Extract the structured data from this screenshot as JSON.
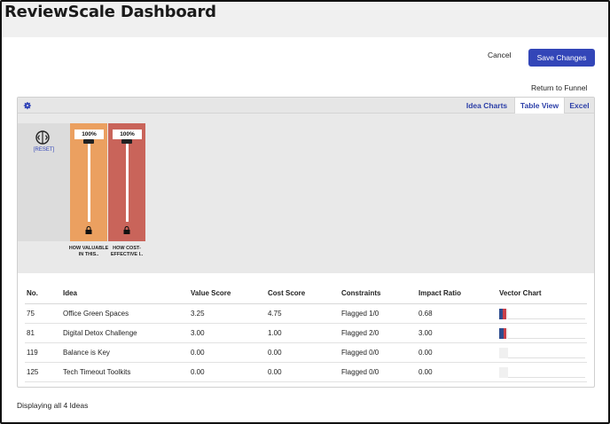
{
  "app": {
    "title": "ReviewScale Dashboard"
  },
  "actions": {
    "cancel": "Cancel",
    "save": "Save Changes",
    "return": "Return to Funnel"
  },
  "tabs": [
    {
      "label": "Idea Charts",
      "active": false
    },
    {
      "label": "Table View",
      "active": true
    },
    {
      "label": "Excel",
      "active": false
    }
  ],
  "sliders": {
    "reset": "[RESET]",
    "items": [
      {
        "percent": "100%",
        "label": "HOW VALUABLE IN THIS..",
        "color": "#eba060"
      },
      {
        "percent": "100%",
        "label": "HOW COST-EFFECTIVE I..",
        "color": "#c9645a"
      }
    ]
  },
  "table": {
    "headers": [
      "No.",
      "Idea",
      "Value Score",
      "Cost Score",
      "Constraints",
      "Impact Ratio",
      "Vector Chart"
    ],
    "rows": [
      {
        "no": "75",
        "idea": "Office Green Spaces",
        "value": "3.25",
        "cost": "4.75",
        "constraints": "Flagged 1/0",
        "flagged": false,
        "ratio": "0.68",
        "vector": {
          "blue": 0.7,
          "red": 0.6
        }
      },
      {
        "no": "81",
        "idea": "Digital Detox Challenge",
        "value": "3.00",
        "cost": "1.00",
        "constraints": "Flagged 2/0",
        "flagged": true,
        "ratio": "3.00",
        "vector": {
          "blue": 0.8,
          "red": 0.5
        }
      },
      {
        "no": "119",
        "idea": "Balance is Key",
        "value": "0.00",
        "cost": "0.00",
        "constraints": "Flagged 0/0",
        "flagged": false,
        "ratio": "0.00",
        "vector": {
          "blue": 0,
          "red": 0
        }
      },
      {
        "no": "125",
        "idea": "Tech Timeout Toolkits",
        "value": "0.00",
        "cost": "0.00",
        "constraints": "Flagged 0/0",
        "flagged": false,
        "ratio": "0.00",
        "vector": {
          "blue": 0,
          "red": 0
        }
      }
    ]
  },
  "footer": {
    "text": "Displaying all 4 Ideas"
  },
  "colors": {
    "accent": "#3346b8",
    "link_orange": "#d07f12",
    "vector_blue": "#2f4d8f",
    "vector_red": "#c9404a"
  }
}
